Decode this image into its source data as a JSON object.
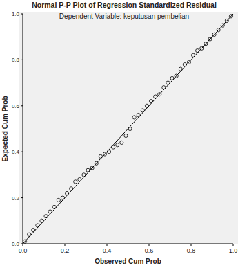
{
  "chart_data": {
    "type": "scatter",
    "title": "Normal P-P Plot of Regression Standardized Residual",
    "subtitle": "Dependent Variable: keputusan pembelian",
    "x_label": "Observed Cum Prob",
    "y_label": "Expected Cum Prob",
    "xlim": [
      0,
      1
    ],
    "ylim": [
      0,
      1
    ],
    "xticks": [
      {
        "value": 0,
        "label": "0.0"
      },
      {
        "value": 0.2,
        "label": "0.2"
      },
      {
        "value": 0.4,
        "label": "0.4"
      },
      {
        "value": 0.6,
        "label": "0.6"
      },
      {
        "value": 0.8,
        "label": "0.8"
      },
      {
        "value": 1,
        "label": "1.0"
      }
    ],
    "yticks": [
      {
        "value": 0,
        "label": "0.0"
      },
      {
        "value": 0.2,
        "label": "0.2"
      },
      {
        "value": 0.4,
        "label": "0.4"
      },
      {
        "value": 0.6,
        "label": "0.6"
      },
      {
        "value": 0.8,
        "label": "0.8"
      },
      {
        "value": 1,
        "label": "1.0"
      }
    ],
    "grid": false,
    "series": [
      {
        "type": "scatter",
        "marker": "circle",
        "color": "#000000",
        "x": [
          0.01,
          0.03,
          0.05,
          0.07,
          0.09,
          0.11,
          0.13,
          0.15,
          0.17,
          0.19,
          0.21,
          0.23,
          0.25,
          0.27,
          0.29,
          0.31,
          0.33,
          0.35,
          0.37,
          0.39,
          0.41,
          0.43,
          0.45,
          0.47,
          0.49,
          0.51,
          0.53,
          0.55,
          0.57,
          0.59,
          0.61,
          0.63,
          0.65,
          0.67,
          0.69,
          0.71,
          0.73,
          0.75,
          0.77,
          0.79,
          0.81,
          0.83,
          0.85,
          0.87,
          0.89,
          0.91,
          0.93,
          0.95,
          0.97,
          0.99
        ],
        "values": [
          0.01,
          0.04,
          0.06,
          0.08,
          0.1,
          0.12,
          0.14,
          0.16,
          0.19,
          0.2,
          0.22,
          0.24,
          0.27,
          0.28,
          0.3,
          0.32,
          0.33,
          0.35,
          0.38,
          0.39,
          0.4,
          0.42,
          0.43,
          0.44,
          0.47,
          0.5,
          0.55,
          0.56,
          0.58,
          0.6,
          0.62,
          0.64,
          0.65,
          0.68,
          0.7,
          0.72,
          0.73,
          0.76,
          0.78,
          0.79,
          0.82,
          0.84,
          0.85,
          0.87,
          0.89,
          0.91,
          0.93,
          0.95,
          0.97,
          0.99
        ]
      },
      {
        "type": "line",
        "line_style": "solid",
        "color": "#000000",
        "x": [
          0,
          1
        ],
        "values": [
          0,
          1
        ]
      }
    ]
  }
}
